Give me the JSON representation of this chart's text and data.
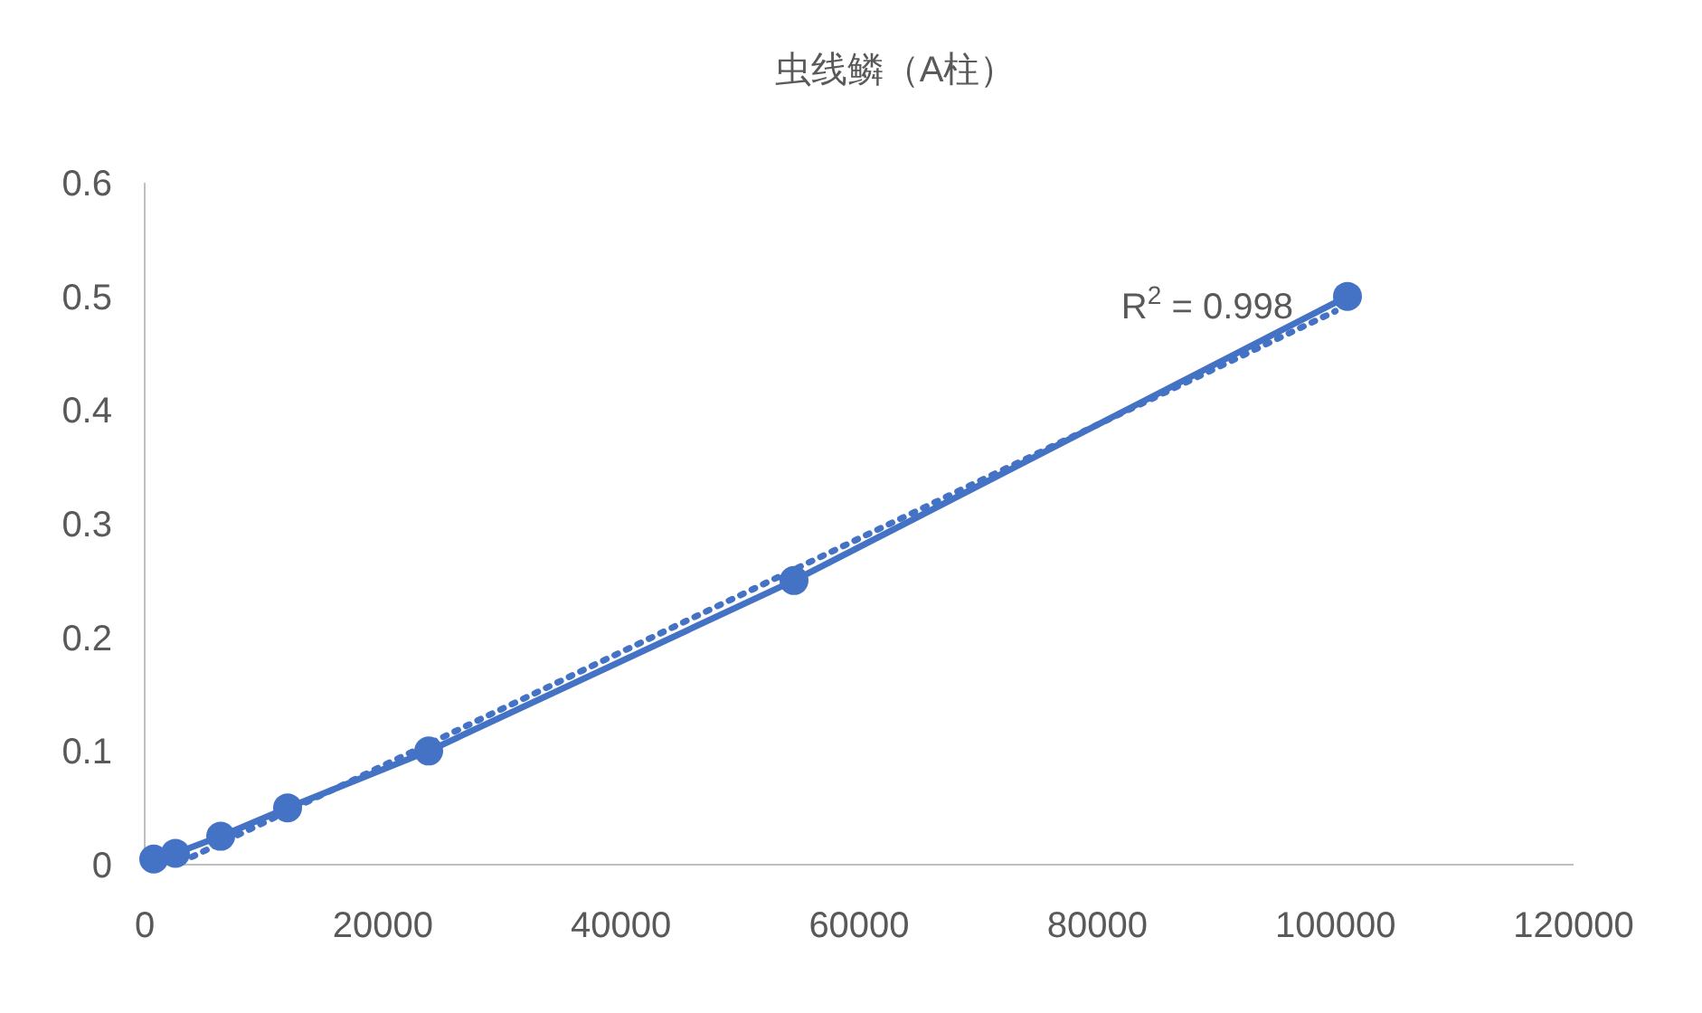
{
  "chart_data": {
    "type": "scatter",
    "title": "虫线鳞（A柱）",
    "xlim": [
      0,
      120000
    ],
    "xticks": [
      0,
      20000,
      40000,
      60000,
      80000,
      100000,
      120000
    ],
    "ylim": [
      0,
      0.6
    ],
    "yticks": [
      0,
      0.1,
      0.2,
      0.3,
      0.4,
      0.5,
      0.6
    ],
    "grid": false,
    "series": [
      {
        "type": "line",
        "color": "#4472c4",
        "marker": "circle",
        "line_style": "solid",
        "x": [
          760,
          2580,
          6380,
          12000,
          23850,
          54530,
          101010
        ],
        "values": [
          0.005,
          0.01,
          0.025,
          0.05,
          0.1,
          0.25,
          0.5
        ]
      },
      {
        "type": "line",
        "color": "#4472c4",
        "marker": "none",
        "line_style": "dotted",
        "x": [
          3000,
          100000
        ],
        "values": [
          0.002,
          0.487
        ]
      }
    ],
    "annotations": [
      "R$^{2}$ = 0.998"
    ]
  }
}
